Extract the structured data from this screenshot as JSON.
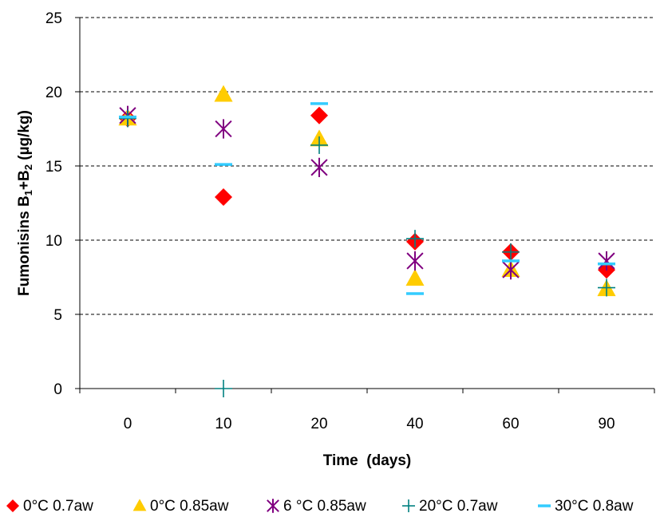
{
  "chart_data": {
    "type": "scatter",
    "title": "",
    "xlabel": "Time  (days)",
    "ylabel": {
      "prefix": "Fumonisins B",
      "sub1": "1",
      "mid": "+B",
      "sub2": "2",
      "suffix": " (µg/kg)"
    },
    "categories": [
      "0",
      "10",
      "20",
      "40",
      "60",
      "90"
    ],
    "ylim": [
      0,
      25
    ],
    "yticks": [
      "0",
      "5",
      "10",
      "15",
      "20",
      "25"
    ],
    "grid": "horizontal dashed",
    "legend_position": "bottom",
    "series": [
      {
        "name": "0°C  0.7aw",
        "marker": "diamond",
        "color": "#ff0000",
        "values": [
          18.2,
          12.9,
          18.4,
          9.9,
          9.2,
          8.0
        ]
      },
      {
        "name": "0°C 0.85aw",
        "marker": "triangle",
        "color": "#ffcc00",
        "values": [
          18.2,
          19.8,
          16.8,
          7.4,
          8.0,
          6.7
        ]
      },
      {
        "name": "6 °C 0.85aw",
        "marker": "asterisk",
        "color": "#800080",
        "values": [
          18.4,
          17.5,
          14.9,
          8.6,
          8.0,
          8.6
        ]
      },
      {
        "name": "20°C 0.7aw",
        "marker": "plus",
        "color": "#008080",
        "values": [
          18.2,
          0.0,
          16.4,
          10.1,
          9.2,
          6.8
        ]
      },
      {
        "name": "30°C 0.8aw",
        "marker": "dash",
        "color": "#33ccff",
        "values": [
          18.3,
          15.1,
          19.2,
          6.4,
          8.6,
          8.4
        ]
      }
    ]
  }
}
